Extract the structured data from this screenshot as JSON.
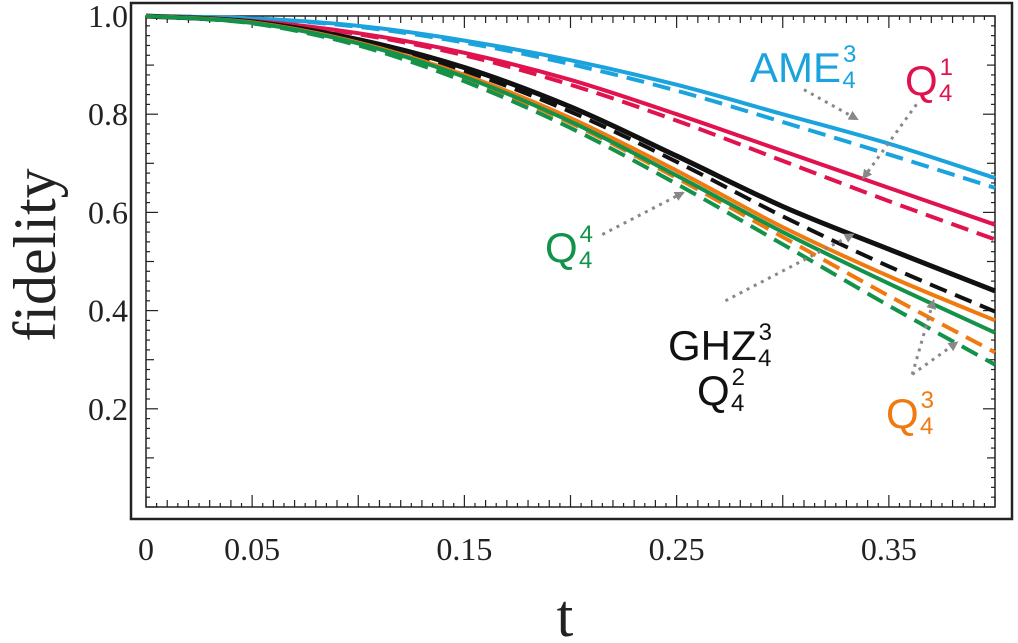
{
  "chart_data": {
    "type": "line",
    "xlabel": "t",
    "ylabel": "fidelity",
    "xlim": [
      0,
      0.4
    ],
    "ylim": [
      0,
      1.0
    ],
    "x_ticks": [
      {
        "value": 0,
        "label": "0"
      },
      {
        "value": 0.05,
        "label": "0.05"
      },
      {
        "value": 0.15,
        "label": "0.15"
      },
      {
        "value": 0.25,
        "label": "0.25"
      },
      {
        "value": 0.35,
        "label": "0.35"
      }
    ],
    "y_ticks": [
      {
        "value": 0.2,
        "label": "0.2"
      },
      {
        "value": 0.4,
        "label": "0.4"
      },
      {
        "value": 0.6,
        "label": "0.6"
      },
      {
        "value": 0.8,
        "label": "0.8"
      },
      {
        "value": 1.0,
        "label": "1.0"
      }
    ],
    "x": [
      0,
      0.05,
      0.1,
      0.15,
      0.2,
      0.25,
      0.3,
      0.35,
      0.4
    ],
    "series": [
      {
        "name": "AME_4^3 solid",
        "color": "#1aa3dc",
        "style": "solid",
        "values": [
          1.0,
          0.995,
          0.98,
          0.95,
          0.91,
          0.86,
          0.8,
          0.74,
          0.67
        ]
      },
      {
        "name": "AME_4^3 dashed",
        "color": "#1aa3dc",
        "style": "dashed",
        "values": [
          1.0,
          0.995,
          0.978,
          0.946,
          0.902,
          0.848,
          0.784,
          0.718,
          0.65
        ]
      },
      {
        "name": "Q_4^1 solid",
        "color": "#e0134e",
        "style": "solid",
        "values": [
          1.0,
          0.99,
          0.965,
          0.925,
          0.87,
          0.8,
          0.725,
          0.65,
          0.575
        ]
      },
      {
        "name": "Q_4^1 dashed",
        "color": "#e0134e",
        "style": "dashed",
        "values": [
          1.0,
          0.99,
          0.963,
          0.92,
          0.86,
          0.787,
          0.705,
          0.623,
          0.545
        ]
      },
      {
        "name": "GHZ_4^3 / Q_4^2 solid",
        "color": "#111111",
        "style": "solid",
        "values": [
          1.0,
          0.988,
          0.952,
          0.895,
          0.815,
          0.715,
          0.612,
          0.525,
          0.44
        ]
      },
      {
        "name": "GHZ_4^3 / Q_4^2 dashed",
        "color": "#111111",
        "style": "dashed",
        "values": [
          1.0,
          0.987,
          0.948,
          0.888,
          0.805,
          0.703,
          0.592,
          0.49,
          0.398
        ]
      },
      {
        "name": "Q_4^3 solid",
        "color": "#f07a10",
        "style": "solid",
        "values": [
          1.0,
          0.987,
          0.946,
          0.88,
          0.792,
          0.685,
          0.57,
          0.47,
          0.38
        ]
      },
      {
        "name": "Q_4^3 dashed",
        "color": "#f07a10",
        "style": "dashed",
        "values": [
          1.0,
          0.986,
          0.942,
          0.873,
          0.782,
          0.67,
          0.55,
          0.43,
          0.315
        ]
      },
      {
        "name": "Q_4^4 solid",
        "color": "#13924a",
        "style": "solid",
        "values": [
          1.0,
          0.986,
          0.944,
          0.876,
          0.785,
          0.675,
          0.56,
          0.455,
          0.355
        ]
      },
      {
        "name": "Q_4^4 dashed",
        "color": "#13924a",
        "style": "dashed",
        "values": [
          1.0,
          0.985,
          0.94,
          0.867,
          0.772,
          0.658,
          0.535,
          0.41,
          0.29
        ]
      }
    ],
    "annotations": [
      {
        "id": "ame",
        "base": "AME",
        "sub": "4",
        "sup": "3",
        "color": "#1aa3dc",
        "arrow_from": [
          0.31,
          0.85
        ],
        "arrow_to": [
          0.335,
          0.79
        ]
      },
      {
        "id": "q1",
        "base": "Q",
        "sub": "4",
        "sup": "1",
        "color": "#e0134e",
        "arrow_from": [
          0.363,
          0.82
        ],
        "arrow_to": [
          0.338,
          0.67
        ]
      },
      {
        "id": "q4",
        "base": "Q",
        "sub": "4",
        "sup": "4",
        "color": "#13924a",
        "arrow_from": [
          0.215,
          0.555
        ],
        "arrow_to": [
          0.253,
          0.64
        ]
      },
      {
        "id": "ghz",
        "base": "GHZ",
        "sub": "4",
        "sup": "3",
        "color": "#111111",
        "arrow_from": [
          0.273,
          0.42
        ],
        "arrow_to": [
          0.333,
          0.555
        ]
      },
      {
        "id": "q2",
        "base": "Q",
        "sub": "4",
        "sup": "2",
        "color": "#111111"
      },
      {
        "id": "q3",
        "base": "Q",
        "sub": "4",
        "sup": "3",
        "color": "#f07a10",
        "arrow_from": [
          0.361,
          0.27
        ],
        "arrow_to": [
          0.371,
          0.42
        ],
        "arrow_to_2": [
          0.382,
          0.335
        ]
      }
    ]
  }
}
